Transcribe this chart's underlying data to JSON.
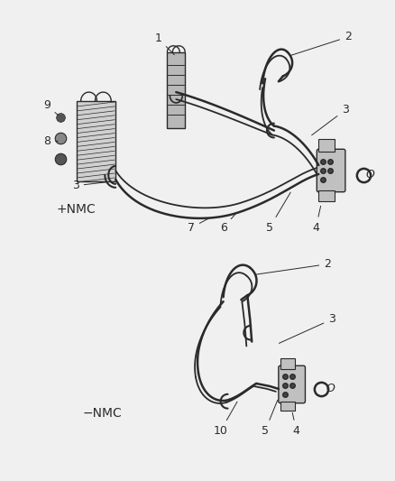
{
  "bg_color": "#f0f0f0",
  "line_color": "#2a2a2a",
  "lw_hose": 1.8,
  "lw_hose2": 1.3,
  "lw_detail": 1.0,
  "top_label": "+NMC",
  "bottom_label": "−NMC",
  "label_fontsize": 8,
  "nmc_fontsize": 10
}
